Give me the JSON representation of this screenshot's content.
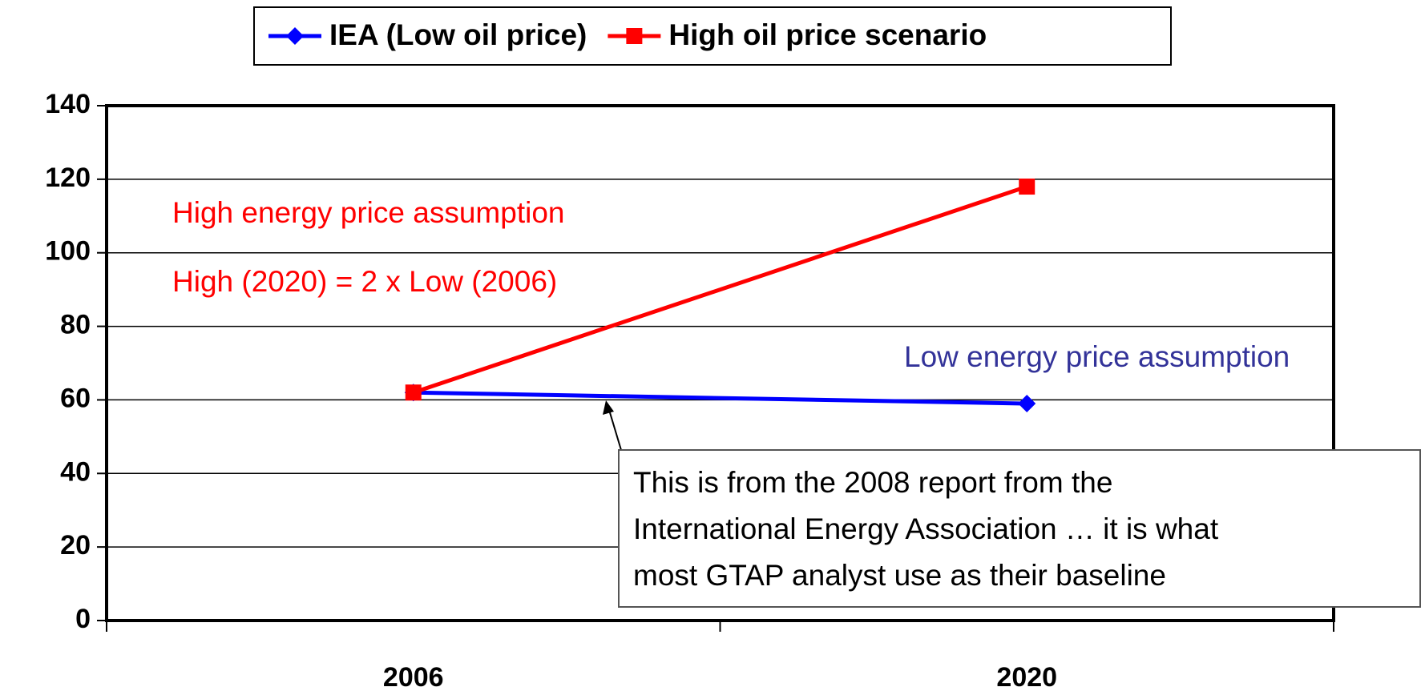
{
  "chart_data": {
    "type": "line",
    "categories": [
      "2006",
      "2020"
    ],
    "series": [
      {
        "name": "IEA (Low oil price)",
        "color": "#0000ff",
        "marker": "diamond",
        "values": [
          62,
          59
        ]
      },
      {
        "name": "High oil price scenario",
        "color": "#ff0000",
        "marker": "square",
        "values": [
          62,
          118
        ]
      }
    ],
    "ylim": [
      0,
      140
    ],
    "yticks": [
      0,
      20,
      40,
      60,
      80,
      100,
      120,
      140
    ],
    "grid": true,
    "legend": "top",
    "annotations": [
      {
        "text": "High energy price assumption",
        "color": "#ff0000"
      },
      {
        "text": "High (2020)  = 2 x Low (2006)",
        "color": "#ff0000"
      },
      {
        "text": "Low energy price assumption",
        "color": "#333399"
      }
    ],
    "callout": [
      "This is from the 2008 report from the",
      "International Energy Association … it is what",
      "most GTAP analyst use as their baseline"
    ]
  }
}
